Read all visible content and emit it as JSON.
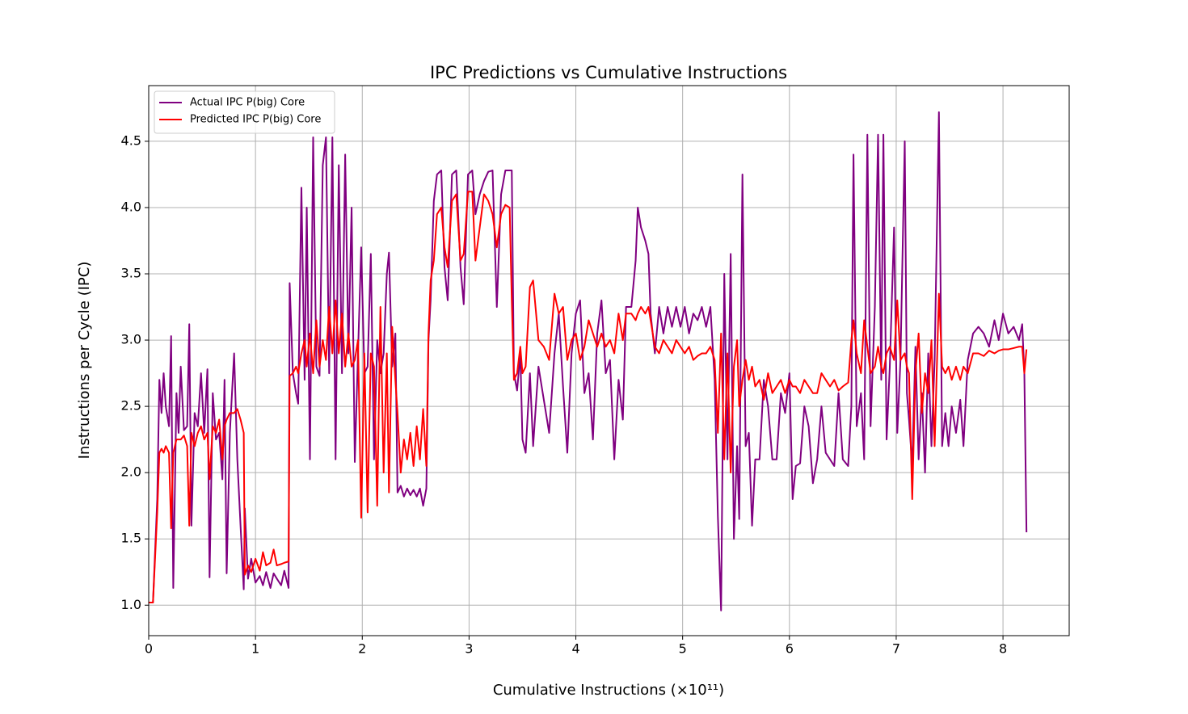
{
  "chart_data": {
    "type": "line",
    "title": "IPC Predictions vs Cumulative Instructions",
    "xlabel": "Cumulative Instructions (×10¹¹)",
    "ylabel": "Instructions per Cycle (IPC)",
    "xlim": [
      0,
      8.62
    ],
    "ylim": [
      0.77,
      4.92
    ],
    "xticks": [
      0,
      1,
      2,
      3,
      4,
      5,
      6,
      7,
      8
    ],
    "yticks": [
      {
        "value": 1,
        "label": "1.0"
      },
      1.5,
      {
        "value": 2,
        "label": "2.0"
      },
      2.5,
      {
        "value": 3,
        "label": "3.0"
      },
      3.5,
      {
        "value": 4,
        "label": "4.0"
      },
      4.5
    ],
    "grid": true,
    "legend": "upper left",
    "x": [
      0.0,
      0.04,
      0.08,
      0.1,
      0.12,
      0.14,
      0.16,
      0.19,
      0.21,
      0.23,
      0.26,
      0.28,
      0.3,
      0.33,
      0.36,
      0.38,
      0.4,
      0.43,
      0.46,
      0.49,
      0.52,
      0.55,
      0.57,
      0.6,
      0.63,
      0.66,
      0.69,
      0.71,
      0.73,
      0.76,
      0.8,
      0.83,
      0.86,
      0.89,
      0.9,
      0.93,
      0.96,
      1.0,
      1.04,
      1.07,
      1.1,
      1.14,
      1.17,
      1.2,
      1.24,
      1.27,
      1.31,
      1.32,
      1.35,
      1.38,
      1.4,
      1.43,
      1.46,
      1.48,
      1.51,
      1.54,
      1.57,
      1.6,
      1.63,
      1.66,
      1.69,
      1.72,
      1.75,
      1.78,
      1.81,
      1.84,
      1.87,
      1.9,
      1.93,
      1.96,
      1.99,
      2.02,
      2.05,
      2.08,
      2.11,
      2.14,
      2.17,
      2.2,
      2.23,
      2.25,
      2.28,
      2.31,
      2.33,
      2.36,
      2.39,
      2.42,
      2.45,
      2.48,
      2.51,
      2.54,
      2.57,
      2.6,
      2.62,
      2.64,
      2.67,
      2.7,
      2.74,
      2.77,
      2.8,
      2.84,
      2.88,
      2.92,
      2.95,
      2.99,
      3.03,
      3.06,
      3.1,
      3.14,
      3.18,
      3.22,
      3.26,
      3.3,
      3.34,
      3.38,
      3.4,
      3.42,
      3.45,
      3.48,
      3.5,
      3.53,
      3.57,
      3.6,
      3.65,
      3.7,
      3.75,
      3.8,
      3.84,
      3.88,
      3.92,
      3.96,
      4.0,
      4.04,
      4.08,
      4.12,
      4.16,
      4.2,
      4.24,
      4.28,
      4.32,
      4.36,
      4.4,
      4.44,
      4.47,
      4.52,
      4.56,
      4.58,
      4.61,
      4.65,
      4.68,
      4.7,
      4.74,
      4.78,
      4.82,
      4.86,
      4.9,
      4.94,
      4.98,
      5.02,
      5.06,
      5.1,
      5.14,
      5.18,
      5.22,
      5.26,
      5.3,
      5.33,
      5.36,
      5.39,
      5.42,
      5.45,
      5.48,
      5.51,
      5.53,
      5.56,
      5.59,
      5.62,
      5.65,
      5.68,
      5.72,
      5.76,
      5.8,
      5.84,
      5.88,
      5.92,
      5.96,
      6.0,
      6.03,
      6.06,
      6.1,
      6.14,
      6.18,
      6.22,
      6.26,
      6.3,
      6.34,
      6.38,
      6.42,
      6.46,
      6.5,
      6.55,
      6.58,
      6.6,
      6.63,
      6.67,
      6.7,
      6.73,
      6.76,
      6.8,
      6.83,
      6.86,
      6.88,
      6.91,
      6.94,
      6.98,
      7.01,
      7.04,
      7.08,
      7.1,
      7.12,
      7.15,
      7.18,
      7.21,
      7.24,
      7.27,
      7.3,
      7.33,
      7.36,
      7.4,
      7.43,
      7.46,
      7.49,
      7.52,
      7.56,
      7.6,
      7.63,
      7.67,
      7.72,
      7.77,
      7.82,
      7.87,
      7.92,
      7.96,
      8.0,
      8.05,
      8.1,
      8.15,
      8.18,
      8.2,
      8.22
    ],
    "series": [
      {
        "name": "Actual IPC P(big) Core",
        "color": "#800080",
        "values": [
          1.02,
          1.02,
          1.8,
          2.7,
          2.45,
          2.75,
          2.5,
          2.35,
          3.03,
          1.13,
          2.6,
          2.3,
          2.8,
          2.32,
          2.35,
          3.12,
          1.6,
          2.45,
          2.35,
          2.75,
          2.3,
          2.78,
          1.21,
          2.6,
          2.25,
          2.3,
          1.95,
          2.7,
          1.24,
          2.3,
          2.9,
          2.1,
          1.6,
          1.12,
          1.73,
          1.2,
          1.35,
          1.17,
          1.22,
          1.15,
          1.25,
          1.13,
          1.24,
          1.2,
          1.15,
          1.26,
          1.13,
          3.43,
          2.75,
          2.6,
          2.52,
          4.15,
          2.7,
          4.0,
          2.1,
          4.53,
          2.8,
          2.73,
          4.32,
          4.53,
          2.75,
          4.53,
          2.1,
          4.32,
          2.75,
          4.4,
          2.9,
          4.0,
          2.08,
          2.9,
          3.7,
          2.75,
          2.8,
          3.65,
          2.1,
          3.0,
          2.75,
          2.9,
          3.5,
          3.66,
          2.8,
          3.05,
          1.85,
          1.9,
          1.82,
          1.88,
          1.83,
          1.87,
          1.82,
          1.88,
          1.75,
          1.88,
          3.0,
          3.3,
          4.05,
          4.25,
          4.28,
          3.55,
          3.3,
          4.25,
          4.28,
          3.55,
          3.27,
          4.25,
          4.28,
          3.95,
          4.1,
          4.2,
          4.27,
          4.28,
          3.25,
          4.1,
          4.28,
          4.28,
          4.28,
          2.75,
          2.62,
          2.9,
          2.25,
          2.15,
          2.75,
          2.2,
          2.8,
          2.55,
          2.3,
          2.9,
          3.2,
          2.65,
          2.15,
          2.9,
          3.2,
          3.3,
          2.6,
          2.75,
          2.25,
          3.05,
          3.3,
          2.75,
          2.85,
          2.1,
          2.7,
          2.4,
          3.25,
          3.25,
          3.6,
          4.0,
          3.85,
          3.75,
          3.65,
          3.2,
          2.9,
          3.25,
          3.05,
          3.25,
          3.1,
          3.25,
          3.1,
          3.25,
          3.05,
          3.2,
          3.15,
          3.25,
          3.1,
          3.25,
          2.7,
          1.67,
          0.96,
          3.5,
          2.1,
          3.65,
          1.5,
          2.2,
          1.65,
          4.25,
          2.2,
          2.3,
          1.6,
          2.1,
          2.1,
          2.7,
          2.5,
          2.1,
          2.1,
          2.6,
          2.45,
          2.75,
          1.8,
          2.05,
          2.07,
          2.5,
          2.35,
          1.92,
          2.1,
          2.5,
          2.15,
          2.1,
          2.05,
          2.6,
          2.1,
          2.05,
          2.5,
          4.4,
          2.35,
          2.6,
          2.1,
          4.55,
          2.35,
          3.25,
          4.55,
          2.7,
          4.55,
          2.25,
          2.8,
          3.85,
          2.3,
          2.85,
          4.5,
          2.6,
          2.4,
          2.05,
          2.95,
          2.1,
          2.6,
          2.0,
          2.9,
          2.2,
          2.85,
          4.72,
          2.2,
          2.45,
          2.2,
          2.5,
          2.3,
          2.55,
          2.2,
          2.85,
          3.05,
          3.1,
          3.05,
          2.95,
          3.15,
          3.0,
          3.2,
          3.05,
          3.1,
          3.0,
          3.12,
          2.75,
          1.55
        ]
      },
      {
        "name": "Predicted IPC P(big) Core",
        "color": "#ff0000",
        "values": [
          1.02,
          1.02,
          1.7,
          2.15,
          2.18,
          2.15,
          2.2,
          2.15,
          1.58,
          2.15,
          2.25,
          2.25,
          2.25,
          2.28,
          2.2,
          1.6,
          2.3,
          2.2,
          2.3,
          2.35,
          2.25,
          2.3,
          1.95,
          2.35,
          2.3,
          2.4,
          2.1,
          2.35,
          2.4,
          2.45,
          2.45,
          2.48,
          2.4,
          2.3,
          1.23,
          1.3,
          1.25,
          1.35,
          1.26,
          1.4,
          1.3,
          1.32,
          1.42,
          1.3,
          1.31,
          1.32,
          1.33,
          2.73,
          2.75,
          2.8,
          2.75,
          2.9,
          3.0,
          2.8,
          3.05,
          2.75,
          3.15,
          2.8,
          3.0,
          2.85,
          3.25,
          2.9,
          3.3,
          2.9,
          3.2,
          2.8,
          3.05,
          2.8,
          2.85,
          3.0,
          1.66,
          2.9,
          1.7,
          2.9,
          2.8,
          1.75,
          3.25,
          2.0,
          2.9,
          1.85,
          3.1,
          2.7,
          2.45,
          2.0,
          2.25,
          2.1,
          2.3,
          2.05,
          2.35,
          2.1,
          2.48,
          2.05,
          3.05,
          3.45,
          3.6,
          3.95,
          4.0,
          3.7,
          3.55,
          4.05,
          4.1,
          3.6,
          3.65,
          4.12,
          4.12,
          3.6,
          3.85,
          4.1,
          4.05,
          3.95,
          3.7,
          3.95,
          4.02,
          4.0,
          3.3,
          2.7,
          2.75,
          2.95,
          2.75,
          2.8,
          3.4,
          3.45,
          3.0,
          2.95,
          2.85,
          3.35,
          3.2,
          3.25,
          2.85,
          3.0,
          3.05,
          2.85,
          2.95,
          3.15,
          3.05,
          2.95,
          3.05,
          2.95,
          3.0,
          2.9,
          3.2,
          3.0,
          3.2,
          3.2,
          3.15,
          3.2,
          3.25,
          3.2,
          3.25,
          3.15,
          2.95,
          2.9,
          3.0,
          2.95,
          2.9,
          3.0,
          2.95,
          2.9,
          2.95,
          2.85,
          2.88,
          2.9,
          2.9,
          2.95,
          2.85,
          2.3,
          3.05,
          2.1,
          2.9,
          2.0,
          2.8,
          3.0,
          2.5,
          2.7,
          2.85,
          2.7,
          2.8,
          2.65,
          2.7,
          2.55,
          2.75,
          2.6,
          2.65,
          2.7,
          2.6,
          2.7,
          2.65,
          2.65,
          2.6,
          2.7,
          2.65,
          2.6,
          2.6,
          2.75,
          2.7,
          2.65,
          2.7,
          2.62,
          2.65,
          2.68,
          3.0,
          3.15,
          2.9,
          2.75,
          3.15,
          2.95,
          2.75,
          2.8,
          2.95,
          2.8,
          2.75,
          2.9,
          2.95,
          2.85,
          3.3,
          2.85,
          2.9,
          2.8,
          2.75,
          1.8,
          2.75,
          3.05,
          2.45,
          2.75,
          2.6,
          3.0,
          2.2,
          3.35,
          2.8,
          2.75,
          2.8,
          2.7,
          2.8,
          2.7,
          2.8,
          2.75,
          2.9,
          2.9,
          2.88,
          2.92,
          2.9,
          2.92,
          2.93,
          2.93,
          2.94,
          2.95,
          2.95,
          2.75,
          2.93
        ]
      }
    ]
  }
}
